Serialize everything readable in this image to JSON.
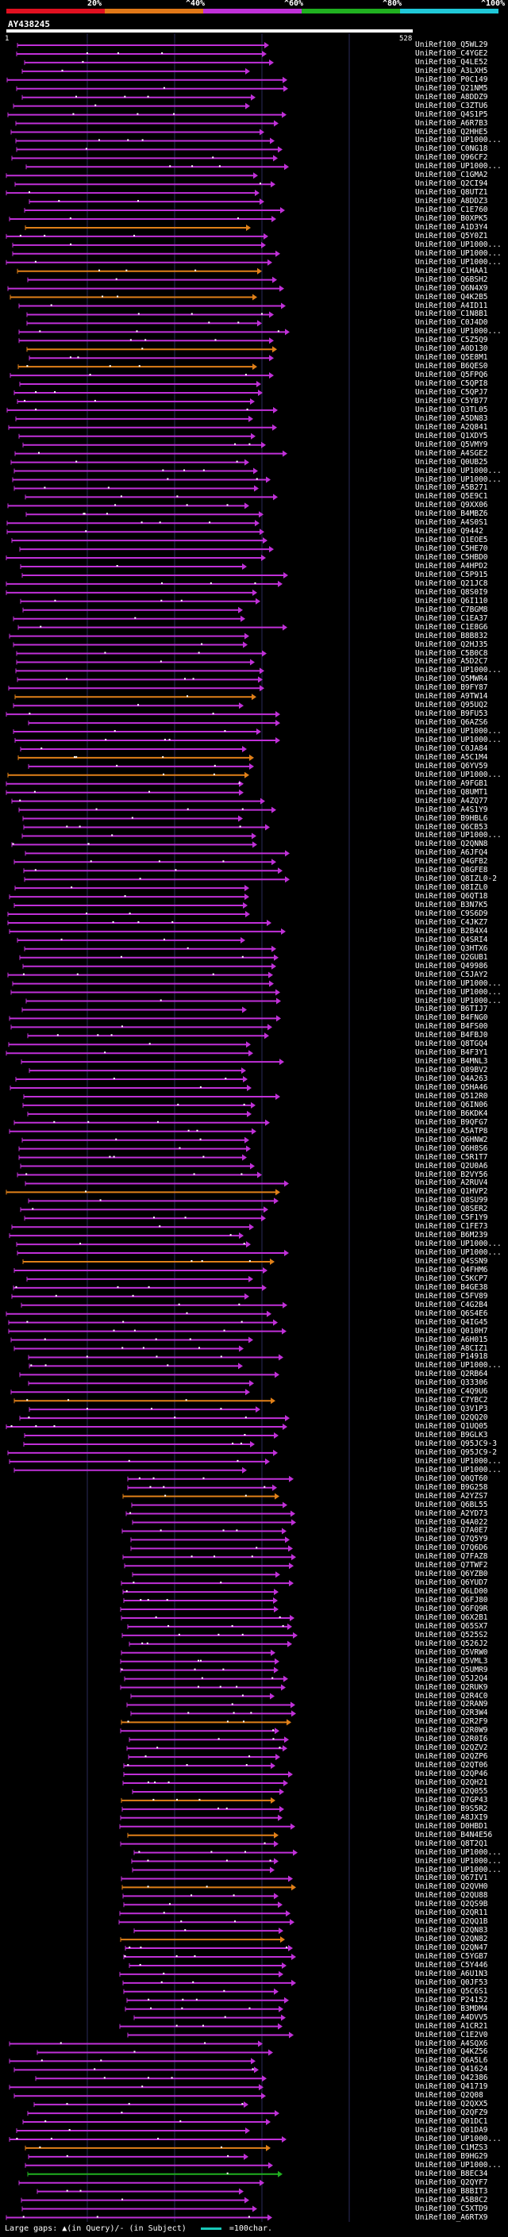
{
  "legend": {
    "labels": [
      "20%",
      "^40%",
      "^60%",
      "^80%",
      "^100%"
    ],
    "colors": [
      "#e01020",
      "#e07818",
      "#c030d8",
      "#20b020",
      "#20c8d8"
    ]
  },
  "query": {
    "title": "AY438245",
    "start_label": "1",
    "end_label": "528"
  },
  "hits": [
    "UniRef100_Q5WL29",
    "UniRef100_C4YGE2",
    "UniRef100_Q4LE52",
    "UniRef100_A3LXH5",
    "UniRef100_P0C149",
    "UniRef100_Q21NM5",
    "UniRef100_A8DDZ9",
    "UniRef100_C3ZTU6",
    "UniRef100_Q4S1P5",
    "UniRef100_A6R7B3",
    "UniRef100_Q2HHE5",
    "UniRef100_UP1000...",
    "UniRef100_C0NG18",
    "UniRef100_Q96CF2",
    "UniRef100_UP1000...",
    "UniRef100_C1GMA2",
    "UniRef100_Q2CI94",
    "UniRef100_Q8UTZ1",
    "UniRef100_A8DDZ3",
    "UniRef100_C1E760",
    "UniRef100_B0XPK5",
    "UniRef100_A1D3Y4",
    "UniRef100_Q5Y0Z1",
    "UniRef100_UP1000...",
    "UniRef100_UP1000...",
    "UniRef100_UP1000...",
    "UniRef100_C1HAA1",
    "UniRef100_Q6BSH2",
    "UniRef100_Q6N4X9",
    "UniRef100_Q4K2B5",
    "UniRef100_A4ID11",
    "UniRef100_C1N8B1",
    "UniRef100_C0J4D0",
    "UniRef100_UP1000...",
    "UniRef100_C5Z5Q9",
    "UniRef100_A0D130",
    "UniRef100_Q5E8M1",
    "UniRef100_B6QES0",
    "UniRef100_Q5FPQ6",
    "UniRef100_C5QPI8",
    "UniRef100_C5QPJ7",
    "UniRef100_C5YB77",
    "UniRef100_Q3TL05",
    "UniRef100_A5DN83",
    "UniRef100_A2Q841",
    "UniRef100_Q1XDY5",
    "UniRef100_Q5VMY9",
    "UniRef100_A4SGE2",
    "UniRef100_Q0UB25",
    "UniRef100_UP1000...",
    "UniRef100_UP1000...",
    "UniRef100_A5B271",
    "UniRef100_Q5E9C1",
    "UniRef100_Q9XX06",
    "UniRef100_B4MBZ6",
    "UniRef100_A4S0S1",
    "UniRef100_Q9442",
    "UniRef100_Q1EOE5",
    "UniRef100_C5HE70",
    "UniRef100_C5HBD0",
    "UniRef100_A4HPD2",
    "UniRef100_C5P915",
    "UniRef100_Q21JC8",
    "UniRef100_Q8S0I9",
    "UniRef100_Q6I110",
    "UniRef100_C7BGM8",
    "UniRef100_C1EA37",
    "UniRef100_C1E8G6",
    "UniRef100_B8B832",
    "UniRef100_Q2HJ35",
    "UniRef100_C5B0C8",
    "UniRef100_A5D2C7",
    "UniRef100_UP1000...",
    "UniRef100_Q5MWR4",
    "UniRef100_B9FY87",
    "UniRef100_A9TW14",
    "UniRef100_Q95UQ2",
    "UniRef100_B9FU53",
    "UniRef100_Q6AZS6",
    "UniRef100_UP1000...",
    "UniRef100_UP1000...",
    "UniRef100_C0JA84",
    "UniRef100_A5C1M4",
    "UniRef100_Q6YV59",
    "UniRef100_UP1000...",
    "UniRef100_A9FGB1",
    "UniRef100_Q8UMT1",
    "UniRef100_A4ZQ77",
    "UniRef100_A4S1Y9",
    "UniRef100_B9HBL6",
    "UniRef100_Q6CB53",
    "UniRef100_UP1000...",
    "UniRef100_Q2QNN8",
    "UniRef100_A6JFQ4",
    "UniRef100_Q4GFB2",
    "UniRef100_Q8GFE8",
    "UniRef100_Q8IZL0-2",
    "UniRef100_Q8IZL0",
    "UniRef100_Q6QT18",
    "UniRef100_B3N7K5",
    "UniRef100_C9S6D9",
    "UniRef100_C4JKZ7",
    "UniRef100_B2B4X4",
    "UniRef100_Q4SRI4",
    "UniRef100_Q3HTX6",
    "UniRef100_Q2GUB1",
    "UniRef100_Q49986",
    "UniRef100_C5JAY2",
    "UniRef100_UP1000...",
    "UniRef100_UP1000...",
    "UniRef100_UP1000...",
    "UniRef100_B6TIJ7",
    "UniRef100_B4FNG0",
    "UniRef100_B4FS00",
    "UniRef100_B4FBJ0",
    "UniRef100_Q8TGQ4",
    "UniRef100_B4F3Y1",
    "UniRef100_B4MNL3",
    "UniRef100_Q89BV2",
    "UniRef100_Q4A263",
    "UniRef100_Q5HA46",
    "UniRef100_Q512R0",
    "UniRef100_Q6IN06",
    "UniRef100_B6KDK4",
    "UniRef100_B9QFG7",
    "UniRef100_A5ATP8",
    "UniRef100_Q6HNW2",
    "UniRef100_Q6H8S6",
    "UniRef100_C5R1T7",
    "UniRef100_Q2U0A6",
    "UniRef100_B2VY56",
    "UniRef100_A2RUV4",
    "UniRef100_Q1HVP2",
    "UniRef100_Q8SU99",
    "UniRef100_Q8SER2",
    "UniRef100_C5F1Y9",
    "UniRef100_C1FE73",
    "UniRef100_B6M239",
    "UniRef100_UP1000...",
    "UniRef100_UP1000...",
    "UniRef100_Q4SSN9",
    "UniRef100_Q4FHM6",
    "UniRef100_C5KCP7",
    "UniRef100_B4GE38",
    "UniRef100_C5FV89",
    "UniRef100_C4G2B4",
    "UniRef100_Q6S4E6",
    "UniRef100_Q4IG45",
    "UniRef100_Q010H7",
    "UniRef100_A6H015",
    "UniRef100_A8CIZ1",
    "UniRef100_P14918",
    "UniRef100_UP1000...",
    "UniRef100_Q2RB64",
    "UniRef100_Q33306",
    "UniRef100_C4Q9U6",
    "UniRef100_C7YBC2",
    "UniRef100_Q3V1P3",
    "UniRef100_Q2QQ20",
    "UniRef100_Q1UQ05",
    "UniRef100_B9GLK3",
    "UniRef100_Q95JC9-3",
    "UniRef100_Q95JC9-2",
    "UniRef100_UP1000...",
    "UniRef100_UP1000...",
    "UniRef100_Q0QT60",
    "UniRef100_B9G258",
    "UniRef100_A2YZS7",
    "UniRef100_Q6BL55",
    "UniRef100_A2YD73",
    "UniRef100_Q4A022",
    "UniRef100_Q7A0E7",
    "UniRef100_Q7Q5Y9",
    "UniRef100_Q7Q6D6",
    "UniRef100_Q7FAZ8",
    "UniRef100_Q7TWF2",
    "UniRef100_Q6YZB0",
    "UniRef100_Q6YUD7",
    "UniRef100_Q6LD00",
    "UniRef100_Q6FJ80",
    "UniRef100_Q6FQ9R",
    "UniRef100_Q6X2B1",
    "UniRef100_Q65SX7",
    "UniRef100_Q525S2",
    "UniRef100_Q526J2",
    "UniRef100_Q5VRW0",
    "UniRef100_Q5VML3",
    "UniRef100_Q5UMR9",
    "UniRef100_Q5J2Q4",
    "UniRef100_Q2RUK9",
    "UniRef100_Q2R4C0",
    "UniRef100_Q2RAN9",
    "UniRef100_Q2R3W4",
    "UniRef100_Q2R2F9",
    "UniRef100_Q2R0W9",
    "UniRef100_Q2R0I6",
    "UniRef100_Q2QZV2",
    "UniRef100_Q2QZP6",
    "UniRef100_Q2QT06",
    "UniRef100_Q2QP46",
    "UniRef100_Q2QH21",
    "UniRef100_Q2Q055",
    "UniRef100_Q7GP43",
    "UniRef100_B9S5R2",
    "UniRef100_A8JXI9",
    "UniRef100_D0HBD1",
    "UniRef100_B4N4E56",
    "UniRef100_Q8T2Q1",
    "UniRef100_UP1000...",
    "UniRef100_UP1000...",
    "UniRef100_UP1000...",
    "UniRef100_Q67IV1",
    "UniRef100_Q2QVH0",
    "UniRef100_Q2QU88",
    "UniRef100_Q2QS9B",
    "UniRef100_Q2QR11",
    "UniRef100_Q2QQ1B",
    "UniRef100_Q2QN83",
    "UniRef100_Q2QN82",
    "UniRef100_Q2QN47",
    "UniRef100_C5YGB7",
    "UniRef100_C5Y446",
    "UniRef100_A6U1N3",
    "UniRef100_Q0JF53",
    "UniRef100_Q5C6S1",
    "UniRef100_P24152",
    "UniRef100_B3MDM4",
    "UniRef100_A4DVV5",
    "UniRef100_A1CR21",
    "UniRef100_C1E2V0",
    "UniRef100_A4SQX6",
    "UniRef100_Q4KZ56",
    "UniRef100_Q6A5L6",
    "UniRef100_Q41624",
    "UniRef100_Q42386",
    "UniRef100_Q41719",
    "UniRef100_Q2Q08",
    "UniRef100_Q2QXX5",
    "UniRef100_Q2QFZ9",
    "UniRef100_Q01DC1",
    "UniRef100_Q01DA9",
    "UniRef100_UP1000...",
    "UniRef100_C1MZS3",
    "UniRef100_B9HG29",
    "UniRef100_UP1000...",
    "UniRef100_B8EC34",
    "UniRef100_Q2QYF7",
    "UniRef100_B8BIT3",
    "UniRef100_A5B8C2",
    "UniRef100_C5XTD9",
    "UniRef100_A6RTX9"
  ],
  "footer": {
    "text": "Large gaps: ▲(in Query)/- (in Subject)",
    "scale_label": "=100char."
  }
}
